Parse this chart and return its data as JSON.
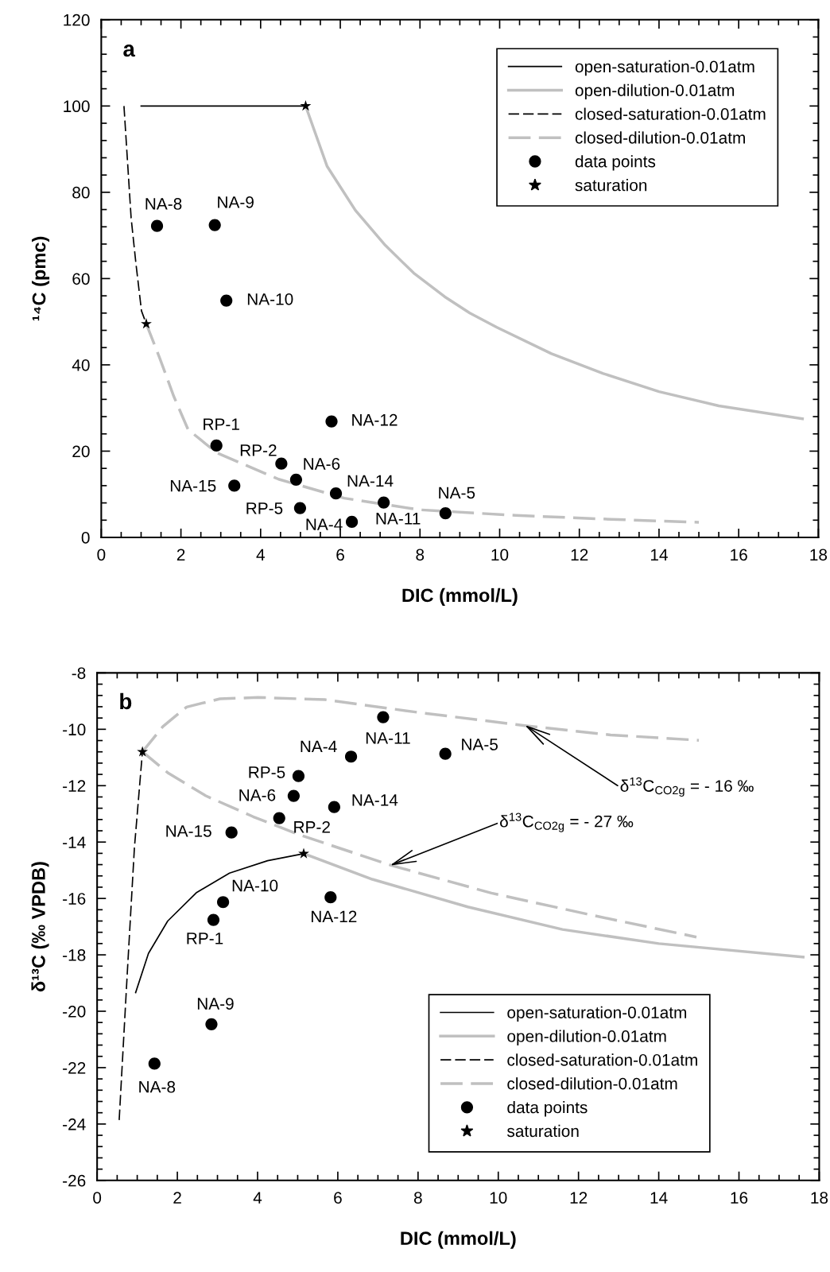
{
  "chart_data": [
    {
      "type": "scatter",
      "xlabel": "DIC (mmol/L)",
      "ylabel": "¹⁴C (pmc)",
      "xlim": [
        0,
        18
      ],
      "ylim": [
        0,
        120
      ],
      "xticks": [
        0,
        2,
        4,
        6,
        8,
        10,
        12,
        14,
        16,
        18
      ],
      "yticks": [
        0,
        20,
        40,
        60,
        80,
        100,
        120
      ],
      "legend": "top right",
      "grid": false,
      "series": [
        {
          "type": "line",
          "name": "open-saturation-0.01atm",
          "color": "#000000",
          "line_style": "solid",
          "x": [
            1.0,
            5.13
          ],
          "values": [
            100,
            100
          ]
        },
        {
          "type": "line",
          "name": "open-dilution-0.01atm",
          "color": "#c0c0c0",
          "line_style": "solid",
          "x": [
            5.13,
            5.67,
            6.38,
            7.13,
            7.84,
            8.62,
            9.25,
            9.93,
            11.3,
            12.6,
            14.0,
            15.5,
            17.6
          ],
          "values": [
            100,
            86,
            75.8,
            67.7,
            61.3,
            55.8,
            52,
            48.7,
            42.6,
            38,
            33.8,
            30.5,
            27.5
          ]
        },
        {
          "type": "line",
          "name": "closed-saturation-0.01atm",
          "color": "#000000",
          "line_style": "dashed",
          "x": [
            0.57,
            0.75,
            0.87,
            1.01,
            1.13
          ],
          "values": [
            100,
            74,
            63.5,
            52.5,
            49.5
          ]
        },
        {
          "type": "line",
          "name": "closed-dilution-0.01atm",
          "color": "#c0c0c0",
          "line_style": "dashed",
          "x": [
            1.13,
            1.47,
            1.82,
            2.18,
            2.9,
            4.45,
            6.1,
            8.0,
            10.4,
            12.8,
            15.0
          ],
          "values": [
            49.5,
            41.5,
            32.7,
            25,
            19.6,
            13.5,
            9.1,
            6.4,
            5.1,
            4.2,
            3.5
          ]
        },
        {
          "type": "scatter",
          "name": "data points",
          "color": "#000000",
          "marker": "circle",
          "x": [
            1.4,
            2.85,
            3.14,
            2.89,
            5.78,
            4.52,
            4.89,
            3.34,
            5.89,
            7.09,
            8.64,
            4.99,
            6.29
          ],
          "values": [
            72.2,
            72.4,
            54.9,
            21.3,
            26.9,
            17.1,
            13.4,
            12.0,
            10.2,
            8.1,
            5.6,
            6.8,
            3.6
          ]
        },
        {
          "type": "scatter",
          "name": "saturation",
          "color": "#000000",
          "marker": "star",
          "x": [
            1.13,
            5.13
          ],
          "values": [
            49.5,
            100
          ]
        }
      ],
      "annotations": [
        "a",
        {
          "text": "NA-8",
          "x": 1.4,
          "y": 72.2
        },
        {
          "text": "NA-9",
          "x": 2.85,
          "y": 72.4
        },
        {
          "text": "NA-10",
          "x": 3.14,
          "y": 54.9
        },
        {
          "text": "RP-1",
          "x": 2.89,
          "y": 21.3
        },
        {
          "text": "NA-12",
          "x": 5.78,
          "y": 26.9
        },
        {
          "text": "RP-2",
          "x": 4.52,
          "y": 17.1
        },
        {
          "text": "NA-6",
          "x": 4.89,
          "y": 13.4
        },
        {
          "text": "NA-15",
          "x": 3.34,
          "y": 12.0
        },
        {
          "text": "NA-14",
          "x": 5.89,
          "y": 10.2
        },
        {
          "text": "NA-11",
          "x": 7.09,
          "y": 8.1
        },
        {
          "text": "NA-5",
          "x": 8.64,
          "y": 5.6
        },
        {
          "text": "RP-5",
          "x": 4.99,
          "y": 6.8
        },
        {
          "text": "NA-4",
          "x": 6.29,
          "y": 3.6
        }
      ]
    },
    {
      "type": "scatter",
      "xlabel": "DIC (mmol/L)",
      "ylabel": "δ¹³C (‰ VPDB)",
      "xlim": [
        0,
        18
      ],
      "ylim": [
        -26,
        -8
      ],
      "xticks": [
        0,
        2,
        4,
        6,
        8,
        10,
        12,
        14,
        16,
        18
      ],
      "yticks": [
        -26,
        -24,
        -22,
        -20,
        -18,
        -16,
        -14,
        -12,
        -10,
        -8
      ],
      "legend": "bottom right",
      "grid": false,
      "series": [
        {
          "type": "line",
          "name": "open-saturation-0.01atm",
          "color": "#000000",
          "line_style": "solid",
          "x": [
            0.96,
            1.28,
            1.76,
            2.47,
            3.3,
            4.25,
            5.15
          ],
          "values": [
            -19.34,
            -17.95,
            -16.8,
            -15.8,
            -15.1,
            -14.66,
            -14.41
          ]
        },
        {
          "type": "line",
          "name": "open-dilution-0.01atm",
          "color": "#c0c0c0",
          "line_style": "solid",
          "x": [
            5.15,
            6.86,
            9.24,
            11.6,
            14.0,
            17.6
          ],
          "values": [
            -14.41,
            -15.32,
            -16.3,
            -17.1,
            -17.6,
            -18.08
          ]
        },
        {
          "type": "line",
          "name": "closed-saturation-0.01atm",
          "color": "#000000",
          "line_style": "dashed",
          "x": [
            0.55,
            0.75,
            0.93,
            1.13
          ],
          "values": [
            -23.86,
            -18.7,
            -14.2,
            -10.8
          ]
        },
        {
          "type": "line",
          "name": "closed-dilution-0.01atm",
          "color": "#c0c0c0",
          "line_style": "dashed",
          "x": [
            1.13,
            1.64,
            2.23,
            3.06,
            4.01,
            5.68,
            8.05,
            10.66,
            12.8,
            15.0
          ],
          "values": [
            -10.8,
            -9.9,
            -9.21,
            -8.92,
            -8.87,
            -8.95,
            -9.41,
            -9.87,
            -10.2,
            -10.39
          ]
        },
        {
          "type": "line",
          "color": "#c0c0c0",
          "line_style": "dashed",
          "x": [
            1.13,
            1.76,
            2.71,
            3.89,
            5.08,
            7.34,
            9.83,
            12.2,
            14.94
          ],
          "values": [
            -10.8,
            -11.54,
            -12.36,
            -13.1,
            -13.76,
            -14.83,
            -15.81,
            -16.55,
            -17.37
          ]
        },
        {
          "type": "scatter",
          "name": "data points",
          "color": "#000000",
          "marker": "circle",
          "x": [
            7.13,
            6.33,
            8.68,
            5.02,
            4.9,
            5.91,
            4.54,
            3.35,
            3.14,
            2.9,
            5.82,
            2.85,
            1.43
          ],
          "values": [
            -9.57,
            -10.97,
            -10.87,
            -11.66,
            -12.36,
            -12.76,
            -13.15,
            -13.66,
            -16.13,
            -16.76,
            -15.96,
            -20.46,
            -21.86
          ]
        },
        {
          "type": "scatter",
          "name": "saturation",
          "color": "#000000",
          "marker": "star",
          "x": [
            1.13,
            5.15
          ],
          "values": [
            -10.8,
            -14.41
          ]
        }
      ],
      "annotations": [
        "b",
        {
          "text": "NA-11",
          "x": 7.13,
          "y": -9.57
        },
        {
          "text": "NA-4",
          "x": 6.33,
          "y": -10.97
        },
        {
          "text": "NA-5",
          "x": 8.68,
          "y": -10.87
        },
        {
          "text": "RP-5",
          "x": 5.02,
          "y": -11.66
        },
        {
          "text": "NA-6",
          "x": 4.9,
          "y": -12.36
        },
        {
          "text": "NA-14",
          "x": 5.91,
          "y": -12.76
        },
        {
          "text": "RP-2",
          "x": 4.54,
          "y": -13.15
        },
        {
          "text": "NA-15",
          "x": 3.35,
          "y": -13.66
        },
        {
          "text": "NA-10",
          "x": 3.14,
          "y": -16.13
        },
        {
          "text": "RP-1",
          "x": 2.9,
          "y": -16.76
        },
        {
          "text": "NA-12",
          "x": 5.82,
          "y": -15.96
        },
        {
          "text": "NA-9",
          "x": 2.85,
          "y": -20.46
        },
        {
          "text": "NA-8",
          "x": 1.43,
          "y": -21.86
        },
        {
          "text": "δ$^{13}$C$_{CO2g}$ = - 16 ‰",
          "x": 10.66,
          "y": -9.85
        },
        {
          "text": "δ$^{13}$C$_{CO2g}$ = - 27 ‰",
          "x": 7.3,
          "y": -14.83
        }
      ]
    }
  ]
}
